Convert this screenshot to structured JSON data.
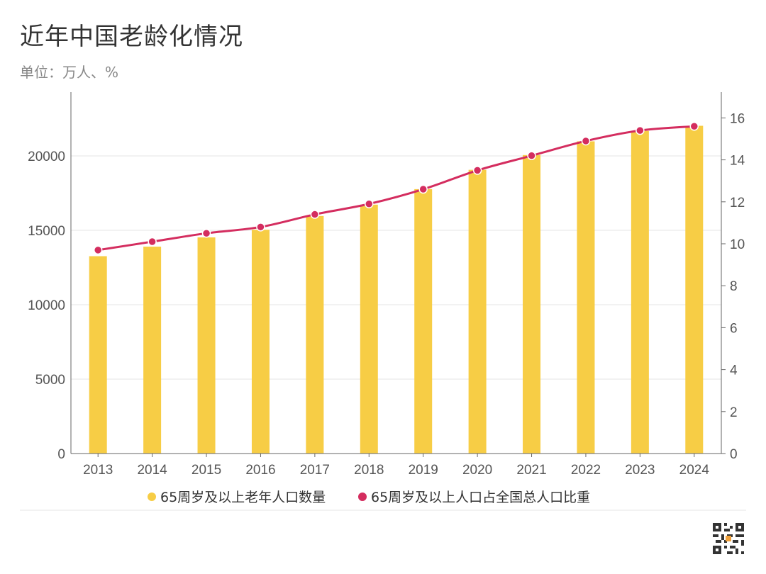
{
  "chart_data": {
    "type": "bar",
    "title": "近年中国老龄化情况",
    "subtitle": "单位：万人、%",
    "categories": [
      "2013",
      "2014",
      "2015",
      "2016",
      "2017",
      "2018",
      "2019",
      "2020",
      "2021",
      "2022",
      "2023",
      "2024"
    ],
    "series": [
      {
        "name": "65周岁及以上老年人口数量",
        "type": "bar",
        "axis": "left",
        "color": "#F7CD45",
        "values": [
          13262,
          13902,
          14524,
          15037,
          15961,
          16724,
          17767,
          19064,
          20056,
          20978,
          21676,
          22023
        ]
      },
      {
        "name": "65周岁及以上人口占全国总人口比重",
        "type": "line",
        "axis": "right",
        "color": "#D42D5F",
        "values": [
          9.7,
          10.1,
          10.5,
          10.8,
          11.4,
          11.9,
          12.6,
          13.5,
          14.2,
          14.9,
          15.4,
          15.6
        ]
      }
    ],
    "y_left": {
      "min": 0,
      "max": 24000,
      "ticks": [
        0,
        5000,
        10000,
        15000,
        20000
      ]
    },
    "y_right": {
      "min": 0,
      "max": 17,
      "ticks": [
        0,
        2,
        4,
        6,
        8,
        10,
        12,
        14,
        16
      ]
    },
    "grid": true,
    "legend_position": "bottom-center"
  }
}
